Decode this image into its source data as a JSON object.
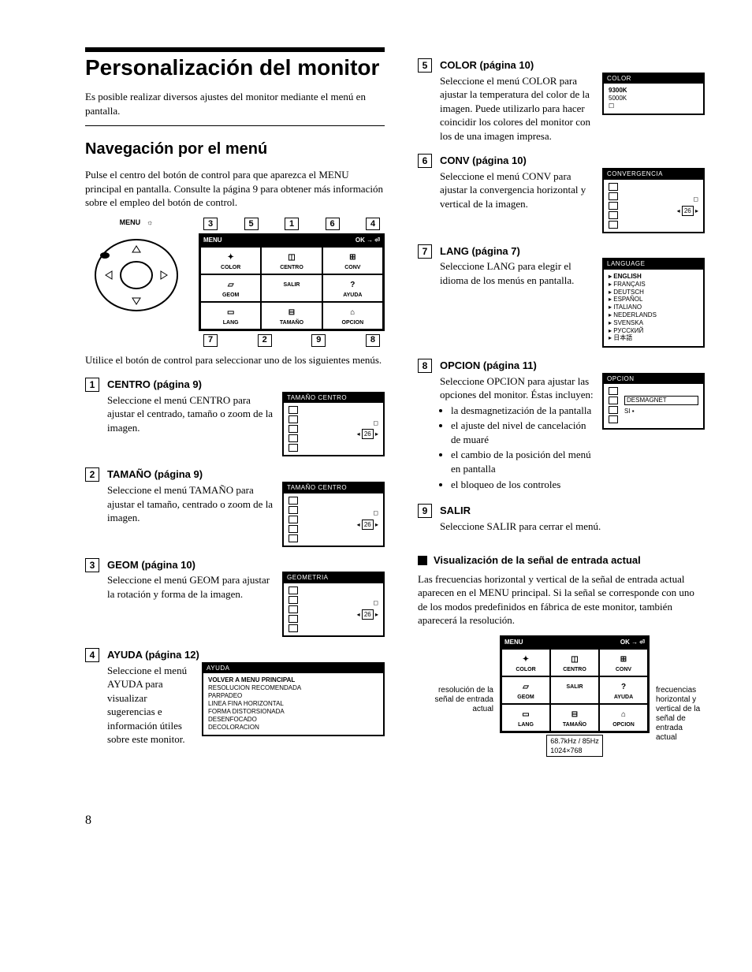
{
  "title": "Personalización del monitor",
  "intro": "Es posible realizar diversos ajustes del monitor mediante el menú en pantalla.",
  "nav_heading": "Navegación por el menú",
  "nav_para": "Pulse el centro del botón de control para que aparezca el MENU principal en pantalla. Consulte la página 9 para obtener más información sobre el empleo del botón de control.",
  "joy_label": "MENU",
  "after_diagram": "Utilice el botón de control para seleccionar uno de los siguientes menús.",
  "menu_header_left": "MENU",
  "menu_header_right": "OK → ⏎",
  "menu_cells": [
    {
      "icon": "✦",
      "label": "COLOR"
    },
    {
      "icon": "◫",
      "label": "CENTRO"
    },
    {
      "icon": "⊞",
      "label": "CONV"
    },
    {
      "icon": "▱",
      "label": "GEOM"
    },
    {
      "icon": " ",
      "label": "SALIR"
    },
    {
      "icon": "?",
      "label": "AYUDA"
    },
    {
      "icon": "▭",
      "label": "LANG"
    },
    {
      "icon": "⊟",
      "label": "TAMAÑO"
    },
    {
      "icon": "⌂",
      "label": "OPCION"
    }
  ],
  "callouts_top": [
    "3",
    "5",
    "1",
    "6",
    "4"
  ],
  "callouts_bot": [
    "7",
    "2",
    "9",
    "8"
  ],
  "items_left": [
    {
      "n": "1",
      "title": "CENTRO (página 9)",
      "text": "Seleccione el menú CENTRO para ajustar el centrado, tamaño o zoom de la imagen.",
      "osd": {
        "title": "TAMAÑO  CENTRO",
        "val": "26"
      }
    },
    {
      "n": "2",
      "title": "TAMAÑO (página 9)",
      "text": "Seleccione el menú TAMAÑO para ajustar el tamaño, centrado o zoom de la imagen.",
      "osd": {
        "title": "TAMAÑO  CENTRO",
        "val": "26"
      }
    },
    {
      "n": "3",
      "title": "GEOM (página 10)",
      "text": "Seleccione el menú GEOM para ajustar la rotación y forma de la imagen.",
      "osd": {
        "title": "GEOMETRIA",
        "val": "26"
      }
    },
    {
      "n": "4",
      "title": "AYUDA (página 12)",
      "text": "Seleccione el menú AYUDA para visualizar sugerencias e información útiles sobre este monitor.",
      "osd": {
        "title": "AYUDA",
        "lines": [
          "VOLVER A MENU PRINCIPAL",
          "RESOLUCION RECOMENDADA",
          "PARPADEO",
          "LINEA FINA HORIZONTAL",
          "FORMA DISTORSIONADA",
          "DESENFOCADO",
          "DECOLORACION"
        ]
      }
    }
  ],
  "items_right": [
    {
      "n": "5",
      "title": "COLOR (página 10)",
      "text": "Seleccione el menú COLOR para ajustar la temperatura del color de la imagen. Puede utilizarlo para hacer coincidir los colores del monitor con los de una imagen impresa.",
      "osd": {
        "title": "COLOR",
        "lines": [
          "9300K",
          "5000K",
          "☐"
        ]
      }
    },
    {
      "n": "6",
      "title": "CONV (página 10)",
      "text": "Seleccione el menú CONV para ajustar la convergencia horizontal y vertical de la imagen.",
      "osd": {
        "title": "CONVERGENCIA",
        "val": "26"
      }
    },
    {
      "n": "7",
      "title": "LANG (página 7)",
      "text": "Seleccione LANG para elegir el idioma de los menús en pantalla.",
      "osd": {
        "title": "LANGUAGE",
        "langs": [
          "ENGLISH",
          "FRANÇAIS",
          "DEUTSCH",
          "ESPAÑOL",
          "ITALIANO",
          "NEDERLANDS",
          "SVENSKA",
          "РУССКИЙ",
          "日本語"
        ]
      }
    },
    {
      "n": "8",
      "title": "OPCION (página 11)",
      "text": "Seleccione OPCION para ajustar las opciones del monitor. Éstas incluyen:",
      "bullets": [
        "la desmagnetización de la pantalla",
        "el ajuste del nivel de cancelación de muaré",
        "el cambio de la posición del menú en pantalla",
        "el bloqueo de los controles"
      ],
      "osd": {
        "title": "OPCION",
        "opt_label": "DESMAGNET",
        "opt_val": "SI"
      }
    },
    {
      "n": "9",
      "title": "SALIR",
      "text": "Seleccione SALIR para cerrar el menú."
    }
  ],
  "signal_heading": "Visualización de la señal de entrada actual",
  "signal_para": "Las frecuencias horizontal y vertical de la señal de entrada actual aparecen en el MENU principal. Si la señal se corresponde con uno de los modos predefinidos en fábrica de este monitor, también aparecerá la resolución.",
  "signal_left_label": "resolución de la señal de entrada actual",
  "signal_right_label": "frecuencias horizontal y vertical de la señal de entrada actual",
  "signal_freq": "68.7kHz / 85Hz",
  "signal_res": "1024×768",
  "page_number": "8"
}
